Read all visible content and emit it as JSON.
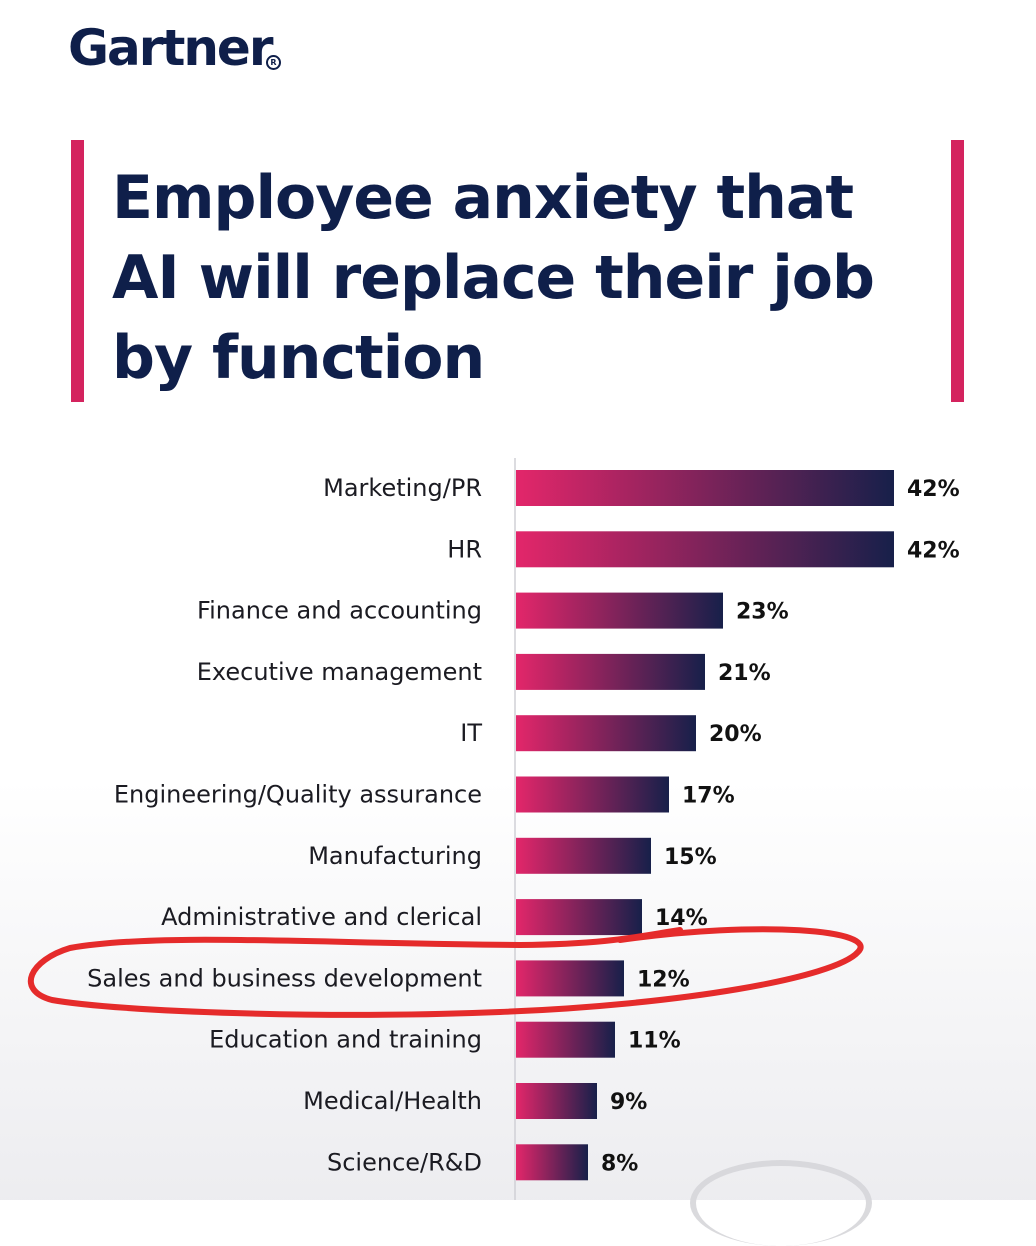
{
  "brand": {
    "name": "Gartner",
    "reg_mark": "R"
  },
  "colors": {
    "accent": "#d4235e",
    "navy": "#0f1f4a",
    "bar_start": "#e3266a",
    "bar_end": "#17204a",
    "highlight": "#e52b2b"
  },
  "title_lines": [
    "Employee anxiety that",
    "AI will replace their job",
    "by function"
  ],
  "chart_data": {
    "type": "bar",
    "orientation": "horizontal",
    "title": "Employee anxiety that AI will replace their job by function",
    "categories": [
      "Marketing/PR",
      "HR",
      "Finance and accounting",
      "Executive management",
      "IT",
      "Engineering/Quality assurance",
      "Manufacturing",
      "Administrative and clerical",
      "Sales and business development",
      "Education and training",
      "Medical/Health",
      "Science/R&D"
    ],
    "values": [
      42,
      42,
      23,
      21,
      20,
      17,
      15,
      14,
      12,
      11,
      9,
      8
    ],
    "value_labels": [
      "42%",
      "42%",
      "23%",
      "21%",
      "20%",
      "17%",
      "15%",
      "14%",
      "12%",
      "11%",
      "9%",
      "8%"
    ],
    "unit": "%",
    "xlim": [
      0,
      42
    ],
    "grid": false,
    "legend": "none",
    "highlighted_category": "Sales and business development"
  }
}
